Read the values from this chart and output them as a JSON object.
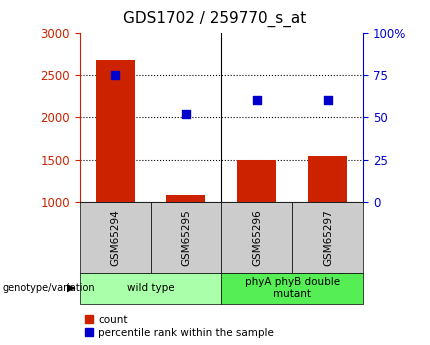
{
  "title": "GDS1702 / 259770_s_at",
  "samples": [
    "GSM65294",
    "GSM65295",
    "GSM65296",
    "GSM65297"
  ],
  "counts": [
    2680,
    1080,
    1490,
    1545
  ],
  "percentile_ranks": [
    75,
    52,
    60,
    60
  ],
  "ylim_left": [
    1000,
    3000
  ],
  "ylim_right": [
    0,
    100
  ],
  "yticks_left": [
    1000,
    1500,
    2000,
    2500,
    3000
  ],
  "yticks_right": [
    0,
    25,
    50,
    75,
    100
  ],
  "ytick_labels_right": [
    "0",
    "25",
    "50",
    "75",
    "100%"
  ],
  "groups": [
    {
      "label": "wild type",
      "samples": [
        0,
        1
      ],
      "color": "#aaffaa"
    },
    {
      "label": "phyA phyB double\nmutant",
      "samples": [
        2,
        3
      ],
      "color": "#55ee55"
    }
  ],
  "bar_color": "#cc2200",
  "scatter_color": "#0000cc",
  "left_tick_color": "#cc2200",
  "right_tick_color": "#0000cc",
  "xlabel_text": "genotype/variation",
  "legend_count_label": "count",
  "legend_pct_label": "percentile rank within the sample",
  "sample_box_color": "#cccccc",
  "title_fontsize": 11,
  "tick_fontsize": 8.5,
  "label_fontsize": 7.5
}
